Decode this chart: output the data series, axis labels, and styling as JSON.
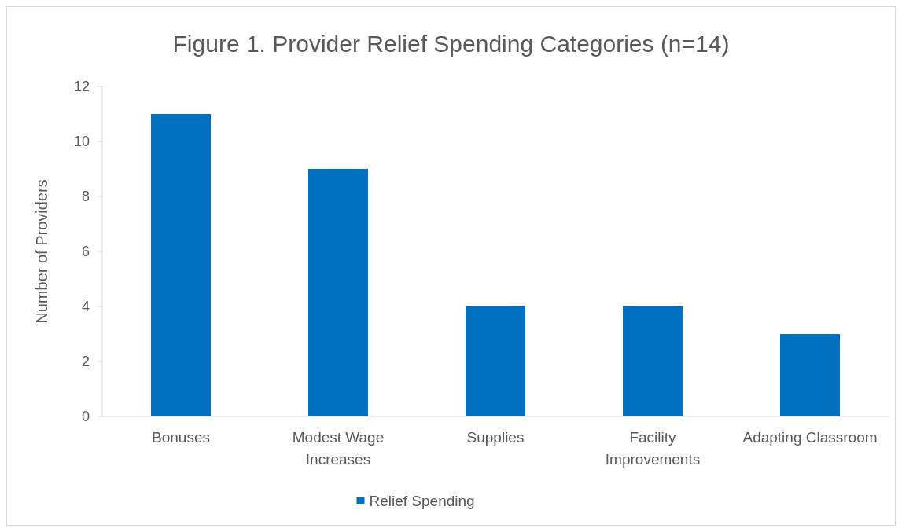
{
  "chart_data": {
    "type": "bar",
    "title": "Figure 1. Provider Relief Spending Categories (n=14)",
    "ylabel": "Number of Providers",
    "categories": [
      "Bonuses",
      "Modest Wage Increases",
      "Supplies",
      "Facility Improvements",
      "Adapting Classroom"
    ],
    "series": [
      {
        "name": "Relief Spending",
        "color": "#0070c0",
        "values": [
          11,
          9,
          4,
          4,
          3
        ]
      }
    ],
    "ylim": [
      0,
      12
    ],
    "yticks": [
      0,
      2,
      4,
      6,
      8,
      10,
      12
    ],
    "grid": false,
    "legend": "bottom"
  }
}
